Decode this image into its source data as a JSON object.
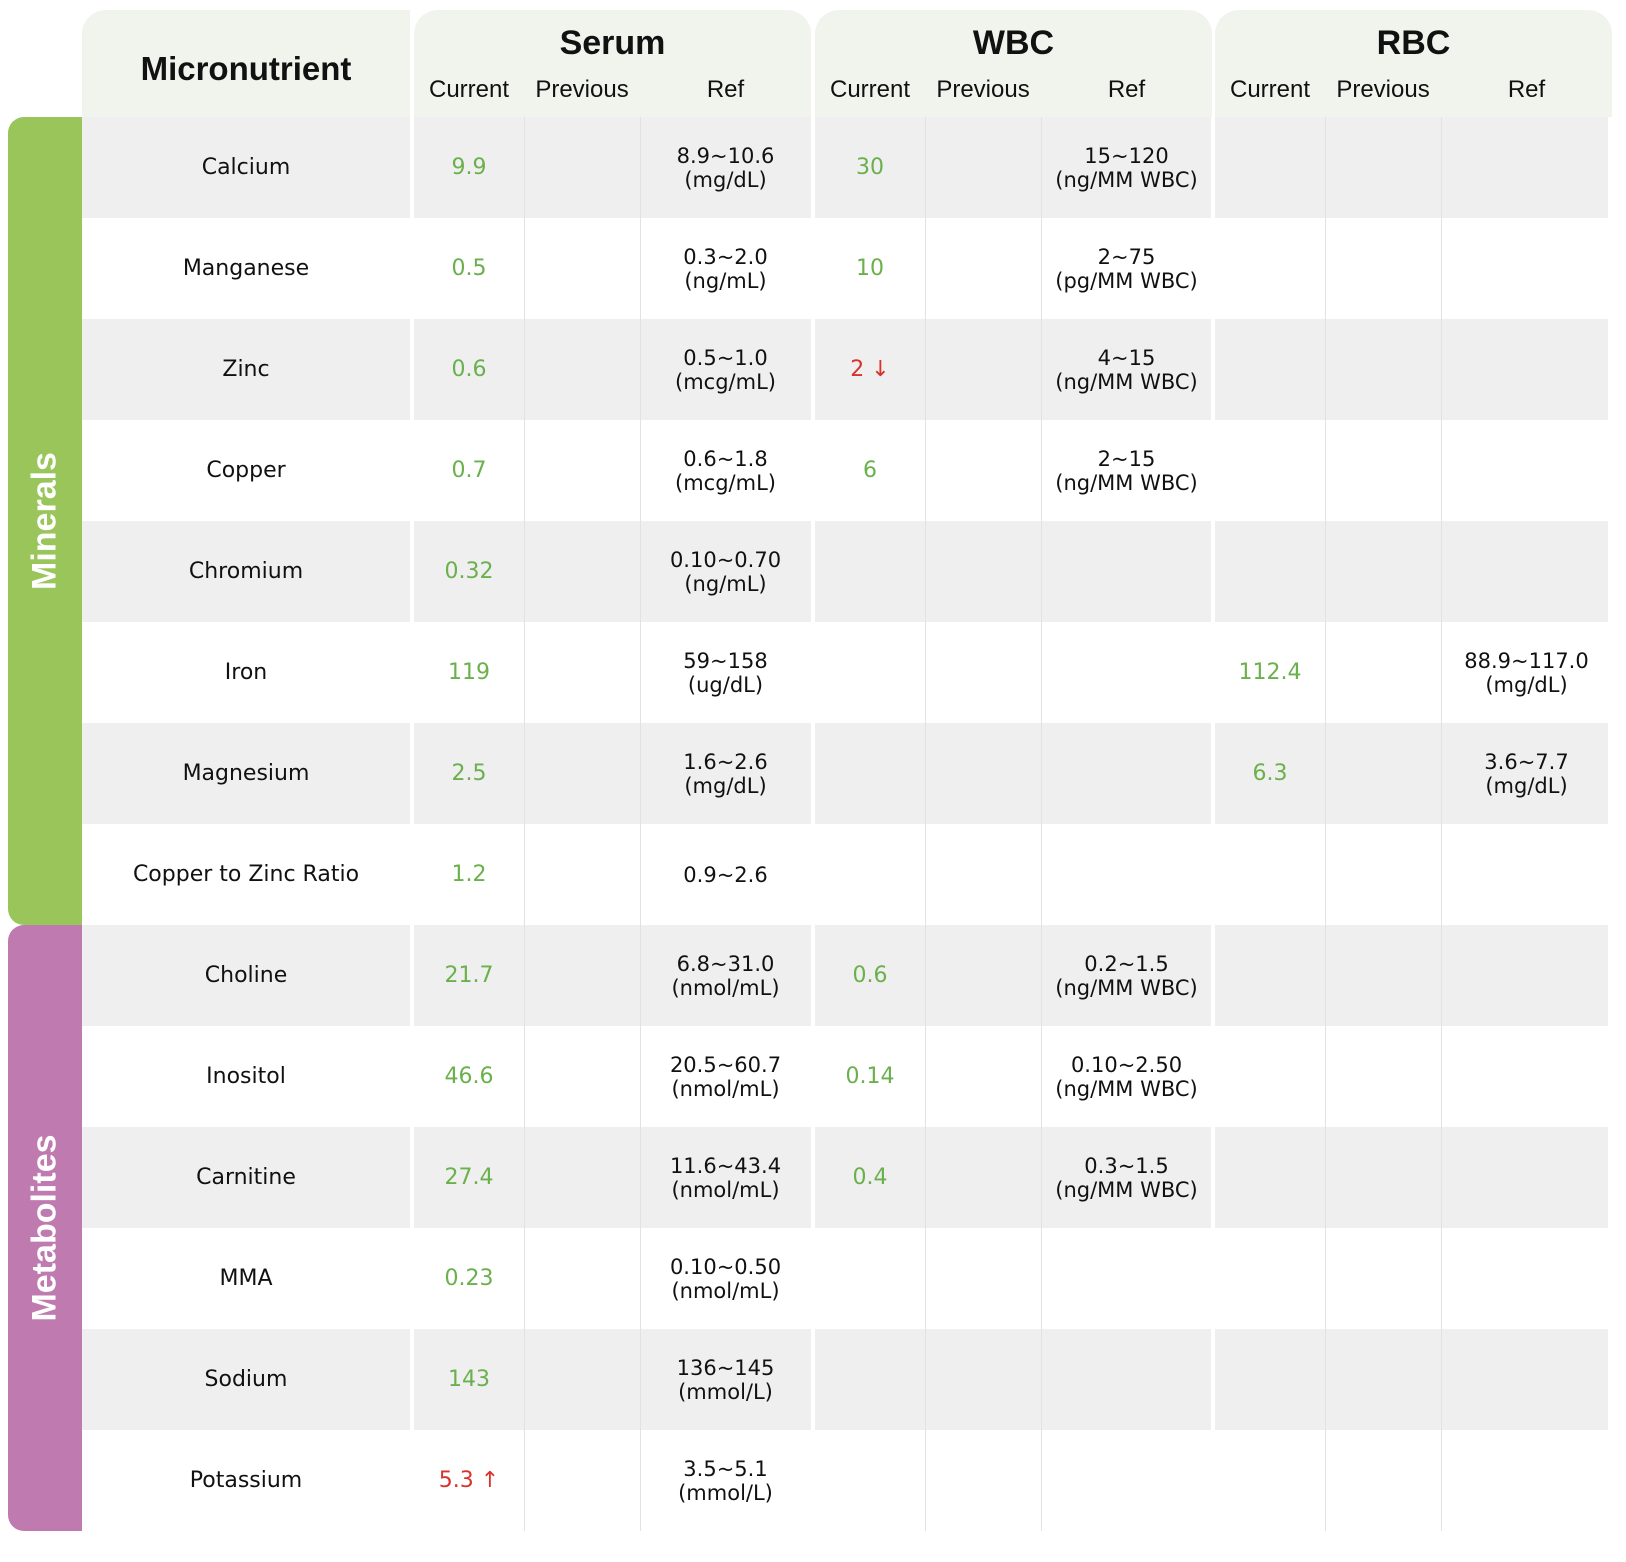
{
  "header": {
    "micronutrient": "Micronutrient",
    "groups": [
      {
        "title": "Serum",
        "current": "Current",
        "previous": "Previous",
        "ref": "Ref"
      },
      {
        "title": "WBC",
        "current": "Current",
        "previous": "Previous",
        "ref": "Ref"
      },
      {
        "title": "RBC",
        "current": "Current",
        "previous": "Previous",
        "ref": "Ref"
      }
    ]
  },
  "categories": [
    {
      "label": "Minerals",
      "color": "#99c55a"
    },
    {
      "label": "Metabolites",
      "color": "#bf7aaf"
    }
  ],
  "colors": {
    "normal": "#6ab04c",
    "flag": "#d8322c"
  },
  "rows": [
    {
      "name": "Calcium",
      "serum": {
        "current": "9.9",
        "flag": "",
        "ref1": "8.9~10.6",
        "ref2": "(mg/dL)"
      },
      "wbc": {
        "current": "30",
        "flag": "",
        "ref1": "15~120",
        "ref2": "(ng/MM WBC)"
      },
      "rbc": {
        "current": "",
        "flag": "",
        "ref1": "",
        "ref2": ""
      }
    },
    {
      "name": "Manganese",
      "serum": {
        "current": "0.5",
        "flag": "",
        "ref1": "0.3~2.0",
        "ref2": "(ng/mL)"
      },
      "wbc": {
        "current": "10",
        "flag": "",
        "ref1": "2~75",
        "ref2": "(pg/MM WBC)"
      },
      "rbc": {
        "current": "",
        "flag": "",
        "ref1": "",
        "ref2": ""
      }
    },
    {
      "name": "Zinc",
      "serum": {
        "current": "0.6",
        "flag": "",
        "ref1": "0.5~1.0",
        "ref2": "(mcg/mL)"
      },
      "wbc": {
        "current": "2 ↓",
        "flag": "low",
        "ref1": "4~15",
        "ref2": "(ng/MM WBC)"
      },
      "rbc": {
        "current": "",
        "flag": "",
        "ref1": "",
        "ref2": ""
      }
    },
    {
      "name": "Copper",
      "serum": {
        "current": "0.7",
        "flag": "",
        "ref1": "0.6~1.8",
        "ref2": "(mcg/mL)"
      },
      "wbc": {
        "current": "6",
        "flag": "",
        "ref1": "2~15",
        "ref2": "(ng/MM WBC)"
      },
      "rbc": {
        "current": "",
        "flag": "",
        "ref1": "",
        "ref2": ""
      }
    },
    {
      "name": "Chromium",
      "serum": {
        "current": "0.32",
        "flag": "",
        "ref1": "0.10~0.70",
        "ref2": "(ng/mL)"
      },
      "wbc": {
        "current": "",
        "flag": "",
        "ref1": "",
        "ref2": ""
      },
      "rbc": {
        "current": "",
        "flag": "",
        "ref1": "",
        "ref2": ""
      }
    },
    {
      "name": "Iron",
      "serum": {
        "current": "119",
        "flag": "",
        "ref1": "59~158",
        "ref2": "(ug/dL)"
      },
      "wbc": {
        "current": "",
        "flag": "",
        "ref1": "",
        "ref2": ""
      },
      "rbc": {
        "current": "112.4",
        "flag": "",
        "ref1": "88.9~117.0",
        "ref2": "(mg/dL)"
      }
    },
    {
      "name": "Magnesium",
      "serum": {
        "current": "2.5",
        "flag": "",
        "ref1": "1.6~2.6",
        "ref2": "(mg/dL)"
      },
      "wbc": {
        "current": "",
        "flag": "",
        "ref1": "",
        "ref2": ""
      },
      "rbc": {
        "current": "6.3",
        "flag": "",
        "ref1": "3.6~7.7",
        "ref2": "(mg/dL)"
      }
    },
    {
      "name": "Copper to Zinc Ratio",
      "serum": {
        "current": "1.2",
        "flag": "",
        "ref1": "0.9~2.6",
        "ref2": ""
      },
      "wbc": {
        "current": "",
        "flag": "",
        "ref1": "",
        "ref2": ""
      },
      "rbc": {
        "current": "",
        "flag": "",
        "ref1": "",
        "ref2": ""
      }
    },
    {
      "name": "Choline",
      "serum": {
        "current": "21.7",
        "flag": "",
        "ref1": "6.8~31.0",
        "ref2": "(nmol/mL)"
      },
      "wbc": {
        "current": "0.6",
        "flag": "",
        "ref1": "0.2~1.5",
        "ref2": "(ng/MM WBC)"
      },
      "rbc": {
        "current": "",
        "flag": "",
        "ref1": "",
        "ref2": ""
      }
    },
    {
      "name": "Inositol",
      "serum": {
        "current": "46.6",
        "flag": "",
        "ref1": "20.5~60.7",
        "ref2": "(nmol/mL)"
      },
      "wbc": {
        "current": "0.14",
        "flag": "",
        "ref1": "0.10~2.50",
        "ref2": "(ng/MM WBC)"
      },
      "rbc": {
        "current": "",
        "flag": "",
        "ref1": "",
        "ref2": ""
      }
    },
    {
      "name": "Carnitine",
      "serum": {
        "current": "27.4",
        "flag": "",
        "ref1": "11.6~43.4",
        "ref2": "(nmol/mL)"
      },
      "wbc": {
        "current": "0.4",
        "flag": "",
        "ref1": "0.3~1.5",
        "ref2": "(ng/MM WBC)"
      },
      "rbc": {
        "current": "",
        "flag": "",
        "ref1": "",
        "ref2": ""
      }
    },
    {
      "name": "MMA",
      "serum": {
        "current": "0.23",
        "flag": "",
        "ref1": "0.10~0.50",
        "ref2": "(nmol/mL)"
      },
      "wbc": {
        "current": "",
        "flag": "",
        "ref1": "",
        "ref2": ""
      },
      "rbc": {
        "current": "",
        "flag": "",
        "ref1": "",
        "ref2": ""
      }
    },
    {
      "name": "Sodium",
      "serum": {
        "current": "143",
        "flag": "",
        "ref1": "136~145",
        "ref2": "(mmol/L)"
      },
      "wbc": {
        "current": "",
        "flag": "",
        "ref1": "",
        "ref2": ""
      },
      "rbc": {
        "current": "",
        "flag": "",
        "ref1": "",
        "ref2": ""
      }
    },
    {
      "name": "Potassium",
      "serum": {
        "current": "5.3 ↑",
        "flag": "high",
        "ref1": "3.5~5.1",
        "ref2": "(mmol/L)"
      },
      "wbc": {
        "current": "",
        "flag": "",
        "ref1": "",
        "ref2": ""
      },
      "rbc": {
        "current": "",
        "flag": "",
        "ref1": "",
        "ref2": ""
      }
    }
  ]
}
